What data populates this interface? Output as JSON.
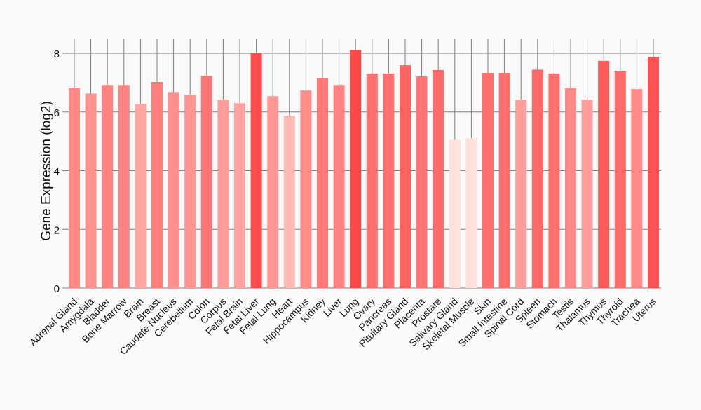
{
  "chart_data": {
    "type": "bar",
    "title": "",
    "xlabel": "",
    "ylabel": "Gene Expression (log2)",
    "ylim": [
      0,
      8.5
    ],
    "yticks": [
      0,
      2,
      4,
      6,
      8
    ],
    "grid": true,
    "legend": "none",
    "categories": [
      "Adrenal Gland",
      "Amygdala",
      "Bladder",
      "Bone Marrow",
      "Brain",
      "Breast",
      "Caudate Nucleus",
      "Cerebellum",
      "Colon",
      "Corpus",
      "Fetal Brain",
      "Fetal Liver",
      "Fetal Lung",
      "Heart",
      "Hippocampus",
      "Kidney",
      "Liver",
      "Lung",
      "Ovary",
      "Pancreas",
      "Pituitary Gland",
      "Placenta",
      "Prostate",
      "Salivary Gland",
      "Skeletal Muscle",
      "Skin",
      "Small Intestine",
      "Spinal Cord",
      "Spleen",
      "Stomach",
      "Testis",
      "Thalamus",
      "Thymus",
      "Thyroid",
      "Trachea",
      "Uterus"
    ],
    "values": [
      6.83,
      6.63,
      6.92,
      6.92,
      6.28,
      7.02,
      6.68,
      6.59,
      7.23,
      6.42,
      6.3,
      8.02,
      6.54,
      5.87,
      6.73,
      7.14,
      6.92,
      8.1,
      7.31,
      7.31,
      7.59,
      7.21,
      7.43,
      5.05,
      5.1,
      7.33,
      7.33,
      6.42,
      7.44,
      7.31,
      6.83,
      6.42,
      7.74,
      7.4,
      6.78,
      7.88
    ],
    "color_low": "#ffe3dc",
    "color_high": "#ff4848"
  }
}
